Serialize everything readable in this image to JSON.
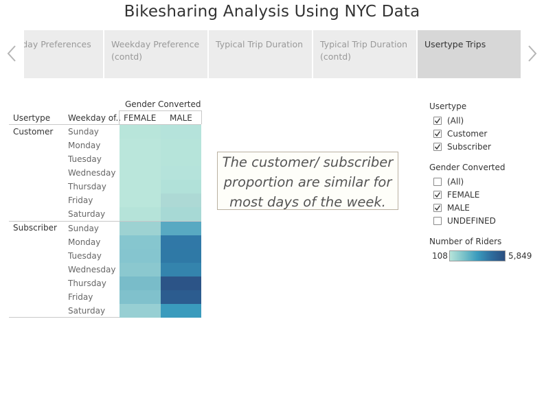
{
  "dashboard": {
    "title": "Bikesharing Analysis Using NYC Data"
  },
  "story": {
    "points": [
      {
        "label": "kday Preferences",
        "selected": false
      },
      {
        "label": "Weekday Preference (contd)",
        "selected": false
      },
      {
        "label": "Typical Trip Duration",
        "selected": false
      },
      {
        "label": "Typical Trip Duration (contd)",
        "selected": false
      },
      {
        "label": "Usertype Trips",
        "selected": true
      }
    ],
    "prev_icon": "chevron-left-icon",
    "next_icon": "chevron-right-icon"
  },
  "crosstab": {
    "column_group_header": "Gender Converted",
    "row_headers": [
      "Usertype",
      "Weekday of.."
    ],
    "columns": [
      "FEMALE",
      "MALE"
    ],
    "groups": [
      {
        "usertype": "Customer",
        "rows": [
          {
            "day": "Sunday",
            "colors": [
              "#b8e5da",
              "#b5e3db"
            ]
          },
          {
            "day": "Monday",
            "colors": [
              "#bae6db",
              "#b6e4da"
            ]
          },
          {
            "day": "Tuesday",
            "colors": [
              "#bae6db",
              "#b6e4da"
            ]
          },
          {
            "day": "Wednesday",
            "colors": [
              "#bae6db",
              "#b5e3db"
            ]
          },
          {
            "day": "Thursday",
            "colors": [
              "#bae6db",
              "#b1e1d9"
            ]
          },
          {
            "day": "Friday",
            "colors": [
              "#bae6db",
              "#add9d5"
            ]
          },
          {
            "day": "Saturday",
            "colors": [
              "#b5e3d9",
              "#a7d9d5"
            ]
          }
        ]
      },
      {
        "usertype": "Subscriber",
        "rows": [
          {
            "day": "Sunday",
            "colors": [
              "#9dd2d2",
              "#58a9c2"
            ]
          },
          {
            "day": "Monday",
            "colors": [
              "#86c6cf",
              "#3078a7"
            ]
          },
          {
            "day": "Tuesday",
            "colors": [
              "#85c5cf",
              "#2f79a6"
            ]
          },
          {
            "day": "Wednesday",
            "colors": [
              "#8bc8cf",
              "#3484ad"
            ]
          },
          {
            "day": "Thursday",
            "colors": [
              "#79bcc9",
              "#2c5487"
            ]
          },
          {
            "day": "Friday",
            "colors": [
              "#80c1cc",
              "#2c5c8f"
            ]
          },
          {
            "day": "Saturday",
            "colors": [
              "#97cfd3",
              "#3a9bbd"
            ]
          }
        ]
      }
    ]
  },
  "annotation": {
    "line1": "The customer/ subscriber",
    "line2": "proportion are similar for",
    "line3": "most days of the week."
  },
  "filters": {
    "usertype": {
      "title": "Usertype",
      "items": [
        {
          "label": "(All)",
          "checked": true
        },
        {
          "label": "Customer",
          "checked": true
        },
        {
          "label": "Subscriber",
          "checked": true
        }
      ]
    },
    "gender": {
      "title": "Gender Converted",
      "items": [
        {
          "label": "(All)",
          "checked": false
        },
        {
          "label": "FEMALE",
          "checked": true
        },
        {
          "label": "MALE",
          "checked": true
        },
        {
          "label": "UNDEFINED",
          "checked": false
        }
      ]
    }
  },
  "legend": {
    "title": "Number of Riders",
    "min": "108",
    "max": "5,849",
    "colors": [
      "#b7e4da",
      "#2b4e80"
    ]
  }
}
